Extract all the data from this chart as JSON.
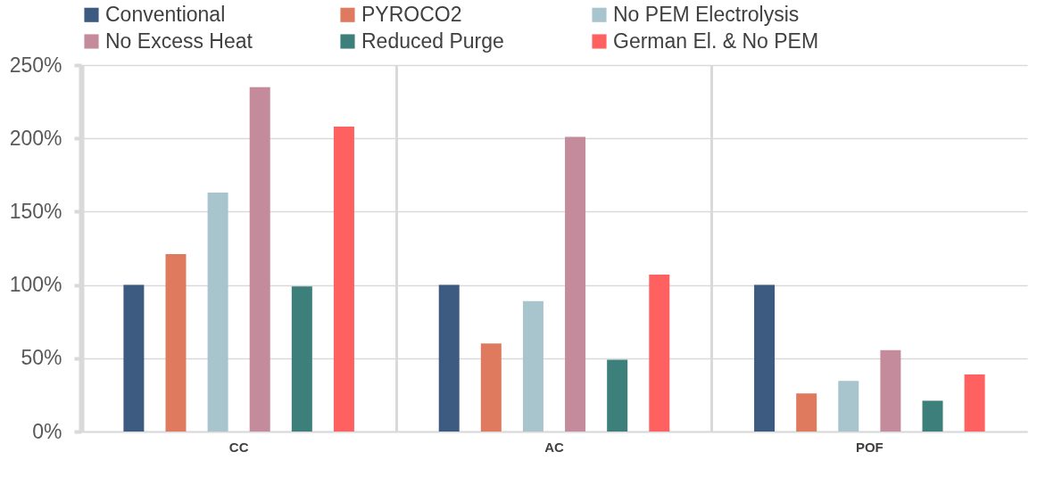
{
  "chart_data": {
    "type": "bar",
    "categories": [
      "CC",
      "AC",
      "POF"
    ],
    "series": [
      {
        "name": "Conventional",
        "color": "#3d5a80",
        "values": [
          100,
          100,
          100
        ]
      },
      {
        "name": "PYROCO2",
        "color": "#e07a5f",
        "values": [
          121,
          60,
          26
        ]
      },
      {
        "name": "No PEM Electrolysis",
        "color": "#a8c5cd",
        "values": [
          163,
          89,
          34.5
        ]
      },
      {
        "name": "No Excess Heat",
        "color": "#c48b9c",
        "values": [
          235,
          201,
          55.5
        ]
      },
      {
        "name": "Reduced Purge",
        "color": "#3d7f7b",
        "values": [
          99,
          49,
          21
        ]
      },
      {
        "name": "German El. & No PEM",
        "color": "#ff6161",
        "values": [
          208,
          107,
          39
        ]
      }
    ],
    "ylim": [
      0,
      250
    ],
    "yticks": [
      {
        "value": 0,
        "label": "0%"
      },
      {
        "value": 50,
        "label": "50%"
      },
      {
        "value": 100,
        "label": "100%"
      },
      {
        "value": 150,
        "label": "150%"
      },
      {
        "value": 200,
        "label": "200%"
      },
      {
        "value": 250,
        "label": "250%"
      }
    ],
    "grid": true,
    "legend": "top"
  }
}
